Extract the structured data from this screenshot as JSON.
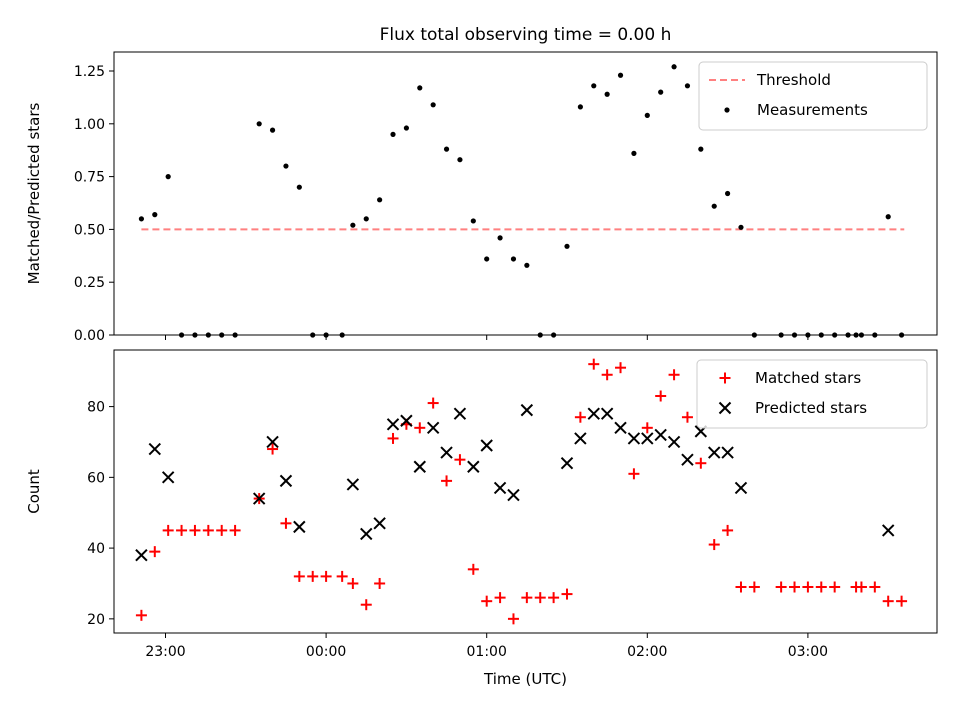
{
  "chart_data": [
    {
      "type": "scatter",
      "title": "Flux total observing time = 0.00 h",
      "xlabel": "",
      "ylabel": "Matched/Predicted stars",
      "ylim": [
        0,
        1.34
      ],
      "yticks": [
        "0.00",
        "0.25",
        "0.50",
        "0.75",
        "1.00",
        "1.25"
      ],
      "xaxis": "time-of-day (hours since 23:00 UTC)",
      "legend": "top-right",
      "threshold": {
        "name": "Threshold",
        "value": 0.5,
        "x_range": [
          "22:51",
          "03:36"
        ],
        "color": "#ff8080",
        "style": "dashed"
      },
      "series": [
        {
          "name": "Measurements",
          "color": "#000000",
          "marker": "dot",
          "points": [
            [
              "22:51",
              0.55
            ],
            [
              "22:56",
              0.57
            ],
            [
              "23:01",
              0.75
            ],
            [
              "23:06",
              0.0
            ],
            [
              "23:11",
              0.0
            ],
            [
              "23:16",
              0.0
            ],
            [
              "23:21",
              0.0
            ],
            [
              "23:26",
              0.0
            ],
            [
              "23:35",
              1.0
            ],
            [
              "23:40",
              0.97
            ],
            [
              "23:45",
              0.8
            ],
            [
              "23:50",
              0.7
            ],
            [
              "23:55",
              0.0
            ],
            [
              "00:00",
              0.0
            ],
            [
              "00:06",
              0.0
            ],
            [
              "00:10",
              0.52
            ],
            [
              "00:15",
              0.55
            ],
            [
              "00:20",
              0.64
            ],
            [
              "00:25",
              0.95
            ],
            [
              "00:30",
              0.98
            ],
            [
              "00:35",
              1.17
            ],
            [
              "00:40",
              1.09
            ],
            [
              "00:45",
              0.88
            ],
            [
              "00:50",
              0.83
            ],
            [
              "00:55",
              0.54
            ],
            [
              "01:00",
              0.36
            ],
            [
              "01:05",
              0.46
            ],
            [
              "01:10",
              0.36
            ],
            [
              "01:15",
              0.33
            ],
            [
              "01:20",
              0.0
            ],
            [
              "01:25",
              0.0
            ],
            [
              "01:30",
              0.42
            ],
            [
              "01:35",
              1.08
            ],
            [
              "01:40",
              1.18
            ],
            [
              "01:45",
              1.14
            ],
            [
              "01:50",
              1.23
            ],
            [
              "01:55",
              0.86
            ],
            [
              "02:00",
              1.04
            ],
            [
              "02:05",
              1.15
            ],
            [
              "02:10",
              1.27
            ],
            [
              "02:15",
              1.18
            ],
            [
              "02:20",
              0.88
            ],
            [
              "02:25",
              0.61
            ],
            [
              "02:30",
              0.67
            ],
            [
              "02:35",
              0.51
            ],
            [
              "02:40",
              0.0
            ],
            [
              "02:50",
              0.0
            ],
            [
              "02:55",
              0.0
            ],
            [
              "03:00",
              0.0
            ],
            [
              "03:05",
              0.0
            ],
            [
              "03:10",
              0.0
            ],
            [
              "03:15",
              0.0
            ],
            [
              "03:18",
              0.0
            ],
            [
              "03:20",
              0.0
            ],
            [
              "03:25",
              0.0
            ],
            [
              "03:30",
              0.56
            ],
            [
              "03:35",
              0.0
            ]
          ]
        }
      ]
    },
    {
      "type": "scatter",
      "title": "",
      "xlabel": "Time (UTC)",
      "ylabel": "Count",
      "ylim": [
        16,
        96
      ],
      "yticks": [
        "20",
        "40",
        "60",
        "80"
      ],
      "xticks": [
        "23:00",
        "00:00",
        "01:00",
        "02:00",
        "03:00"
      ],
      "xaxis": "time-of-day (hours since 23:00 UTC)",
      "legend": "top-right",
      "series": [
        {
          "name": "Matched stars",
          "color": "#ff0000",
          "marker": "plus",
          "points": [
            [
              "22:51",
              21
            ],
            [
              "22:56",
              39
            ],
            [
              "23:01",
              45
            ],
            [
              "23:06",
              45
            ],
            [
              "23:11",
              45
            ],
            [
              "23:16",
              45
            ],
            [
              "23:21",
              45
            ],
            [
              "23:26",
              45
            ],
            [
              "23:35",
              54
            ],
            [
              "23:40",
              68
            ],
            [
              "23:45",
              47
            ],
            [
              "23:50",
              32
            ],
            [
              "23:55",
              32
            ],
            [
              "00:00",
              32
            ],
            [
              "00:06",
              32
            ],
            [
              "00:10",
              30
            ],
            [
              "00:15",
              24
            ],
            [
              "00:20",
              30
            ],
            [
              "00:25",
              71
            ],
            [
              "00:30",
              75
            ],
            [
              "00:35",
              74
            ],
            [
              "00:40",
              81
            ],
            [
              "00:45",
              59
            ],
            [
              "00:50",
              65
            ],
            [
              "00:55",
              34
            ],
            [
              "01:00",
              25
            ],
            [
              "01:05",
              26
            ],
            [
              "01:10",
              20
            ],
            [
              "01:15",
              26
            ],
            [
              "01:20",
              26
            ],
            [
              "01:25",
              26
            ],
            [
              "01:30",
              27
            ],
            [
              "01:35",
              77
            ],
            [
              "01:40",
              92
            ],
            [
              "01:45",
              89
            ],
            [
              "01:50",
              91
            ],
            [
              "01:55",
              61
            ],
            [
              "02:00",
              74
            ],
            [
              "02:05",
              83
            ],
            [
              "02:10",
              89
            ],
            [
              "02:15",
              77
            ],
            [
              "02:20",
              64
            ],
            [
              "02:25",
              41
            ],
            [
              "02:30",
              45
            ],
            [
              "02:35",
              29
            ],
            [
              "02:40",
              29
            ],
            [
              "02:50",
              29
            ],
            [
              "02:55",
              29
            ],
            [
              "03:00",
              29
            ],
            [
              "03:05",
              29
            ],
            [
              "03:10",
              29
            ],
            [
              "03:18",
              29
            ],
            [
              "03:20",
              29
            ],
            [
              "03:25",
              29
            ],
            [
              "03:30",
              25
            ],
            [
              "03:35",
              25
            ]
          ]
        },
        {
          "name": "Predicted stars",
          "color": "#000000",
          "marker": "x",
          "points": [
            [
              "22:51",
              38
            ],
            [
              "22:56",
              68
            ],
            [
              "23:01",
              60
            ],
            [
              "23:35",
              54
            ],
            [
              "23:40",
              70
            ],
            [
              "23:45",
              59
            ],
            [
              "23:50",
              46
            ],
            [
              "00:10",
              58
            ],
            [
              "00:15",
              44
            ],
            [
              "00:20",
              47
            ],
            [
              "00:25",
              75
            ],
            [
              "00:30",
              76
            ],
            [
              "00:35",
              63
            ],
            [
              "00:40",
              74
            ],
            [
              "00:45",
              67
            ],
            [
              "00:50",
              78
            ],
            [
              "00:55",
              63
            ],
            [
              "01:00",
              69
            ],
            [
              "01:05",
              57
            ],
            [
              "01:10",
              55
            ],
            [
              "01:15",
              79
            ],
            [
              "01:30",
              64
            ],
            [
              "01:35",
              71
            ],
            [
              "01:40",
              78
            ],
            [
              "01:45",
              78
            ],
            [
              "01:50",
              74
            ],
            [
              "01:55",
              71
            ],
            [
              "02:00",
              71
            ],
            [
              "02:05",
              72
            ],
            [
              "02:10",
              70
            ],
            [
              "02:15",
              65
            ],
            [
              "02:20",
              73
            ],
            [
              "02:25",
              67
            ],
            [
              "02:30",
              67
            ],
            [
              "02:35",
              57
            ],
            [
              "03:30",
              45
            ]
          ]
        }
      ]
    }
  ]
}
